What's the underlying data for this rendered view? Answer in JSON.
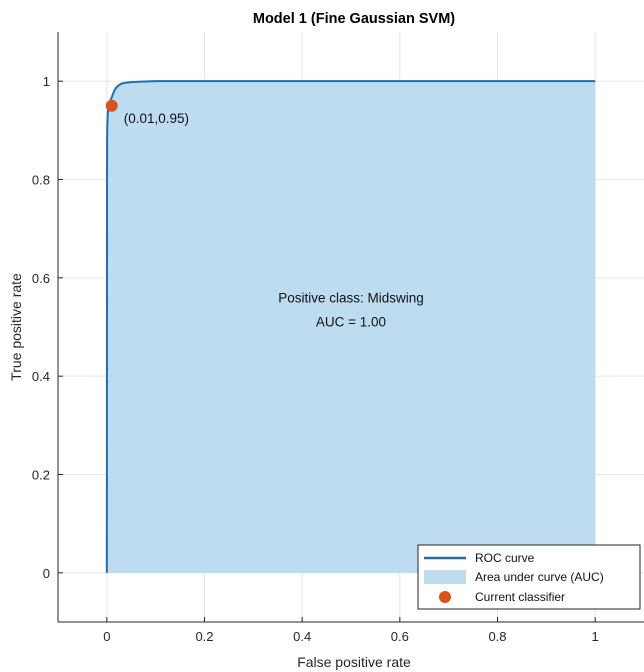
{
  "chart_data": {
    "type": "area",
    "title": "Model 1 (Fine Gaussian SVM)",
    "xlabel": "False positive rate",
    "ylabel": "True positive rate",
    "xlim": [
      -0.1,
      1.1
    ],
    "ylim": [
      -0.1,
      1.1
    ],
    "xticks": [
      0,
      0.2,
      0.4,
      0.6,
      0.8,
      1
    ],
    "xtick_labels": [
      "0",
      "0.2",
      "0.4",
      "0.6",
      "0.8",
      "1"
    ],
    "yticks": [
      0,
      0.2,
      0.4,
      0.6,
      0.8,
      1
    ],
    "ytick_labels": [
      "0",
      "0.2",
      "0.4",
      "0.6",
      "0.8",
      "1"
    ],
    "grid": true,
    "legend_position": "bottom-right",
    "series": [
      {
        "name": "ROC curve",
        "type": "line",
        "color": "#1f6fad",
        "x": [
          0,
          0.0005,
          0.001,
          0.0015,
          0.002,
          0.003,
          0.004,
          0.005,
          0.006,
          0.008,
          0.01,
          0.013,
          0.016,
          0.02,
          0.025,
          0.03,
          0.04,
          0.05,
          0.07,
          0.1,
          0.2,
          0.4,
          0.6,
          0.8,
          1.0
        ],
        "y": [
          0,
          0.88,
          0.91,
          0.925,
          0.935,
          0.945,
          0.95,
          0.953,
          0.957,
          0.962,
          0.967,
          0.975,
          0.982,
          0.988,
          0.992,
          0.995,
          0.997,
          0.998,
          0.999,
          1.0,
          1.0,
          1.0,
          1.0,
          1.0,
          1.0
        ]
      },
      {
        "name": "Area under curve (AUC)",
        "type": "area",
        "color": "#bedcf0"
      },
      {
        "name": "Current classifier",
        "type": "scatter",
        "color": "#d95319",
        "x": [
          0.01
        ],
        "y": [
          0.95
        ]
      }
    ],
    "annotations": {
      "point_label": "(0.01,0.95)",
      "positive_class": "Positive class: Midswing",
      "auc": "AUC = 1.00"
    },
    "legend": [
      "ROC curve",
      "Area under curve (AUC)",
      "Current classifier"
    ]
  }
}
